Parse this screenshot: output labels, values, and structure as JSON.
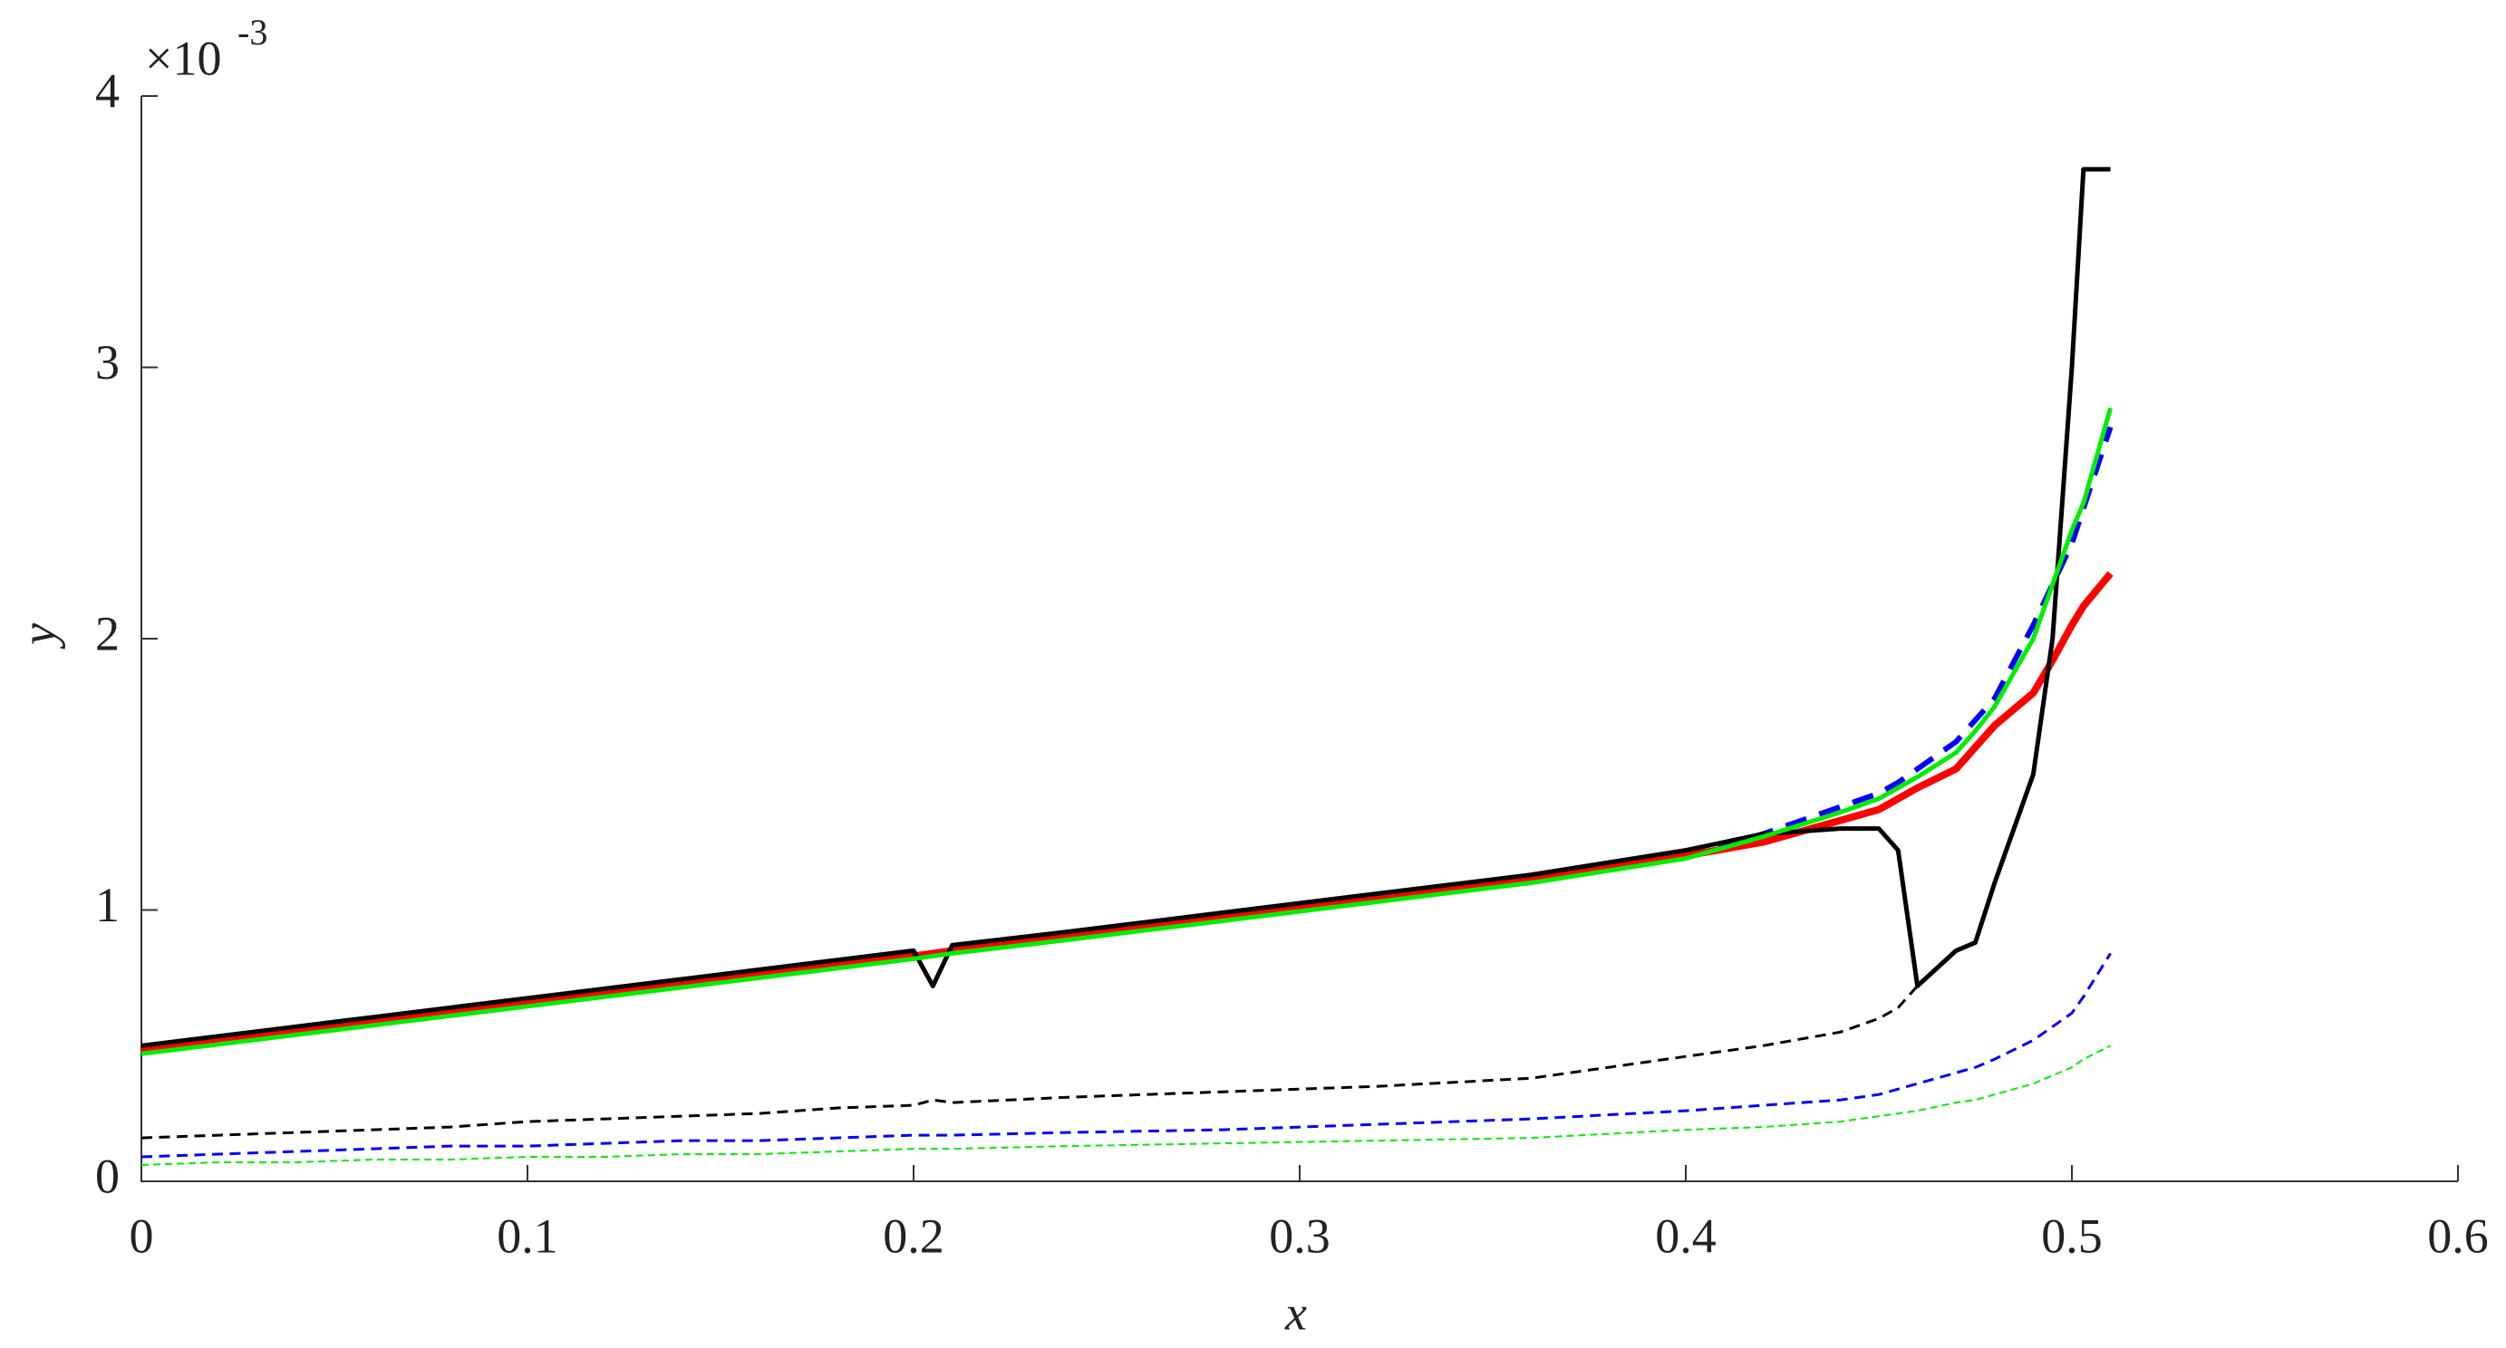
{
  "chart_data": {
    "type": "line",
    "xlabel": "x",
    "ylabel": "y",
    "y_multiplier": "×10",
    "y_exponent": "-3",
    "xlim": [
      0,
      0.6
    ],
    "xticks": [
      0,
      0.1,
      0.2,
      0.3,
      0.4,
      0.5,
      0.6
    ],
    "ylim": [
      0,
      4
    ],
    "yticks": [
      0,
      1,
      2,
      3,
      4
    ],
    "x": [
      0,
      0.02,
      0.04,
      0.06,
      0.08,
      0.1,
      0.12,
      0.14,
      0.16,
      0.18,
      0.2,
      0.205,
      0.21,
      0.24,
      0.28,
      0.32,
      0.36,
      0.4,
      0.42,
      0.44,
      0.45,
      0.455,
      0.46,
      0.47,
      0.475,
      0.48,
      0.49,
      0.495,
      0.5,
      0.503,
      0.51
    ],
    "series": [
      {
        "color": "#0000ff",
        "dash": "dashed",
        "width": 6,
        "values": [
          0.48,
          0.515,
          0.55,
          0.585,
          0.62,
          0.655,
          0.69,
          0.725,
          0.76,
          0.795,
          0.83,
          0.84,
          0.85,
          0.9,
          0.97,
          1.04,
          1.11,
          1.2,
          1.28,
          1.38,
          1.43,
          1.47,
          1.52,
          1.62,
          1.7,
          1.78,
          2.05,
          2.2,
          2.35,
          2.48,
          2.78
        ]
      },
      {
        "color": "#ff0000",
        "dash": "solid",
        "width": 8,
        "values": [
          0.48,
          0.515,
          0.55,
          0.585,
          0.62,
          0.655,
          0.69,
          0.725,
          0.76,
          0.795,
          0.83,
          0.84,
          0.85,
          0.9,
          0.97,
          1.04,
          1.11,
          1.2,
          1.25,
          1.33,
          1.37,
          1.41,
          1.45,
          1.52,
          1.6,
          1.68,
          1.8,
          1.92,
          2.05,
          2.12,
          2.24
        ]
      },
      {
        "color": "#000000",
        "dash": "solid",
        "width": 5,
        "values": [
          0.5,
          0.535,
          0.57,
          0.605,
          0.64,
          0.675,
          0.71,
          0.745,
          0.78,
          0.815,
          0.85,
          0.72,
          0.87,
          0.92,
          0.99,
          1.06,
          1.13,
          1.22,
          1.28,
          1.3,
          1.3,
          1.22,
          0.72,
          0.85,
          0.88,
          1.1,
          1.5,
          2.0,
          3.0,
          3.73,
          3.73
        ]
      },
      {
        "color": "#00ee00",
        "dash": "solid",
        "width": 5,
        "values": [
          0.47,
          0.505,
          0.54,
          0.575,
          0.61,
          0.645,
          0.68,
          0.715,
          0.75,
          0.785,
          0.82,
          0.83,
          0.84,
          0.89,
          0.96,
          1.03,
          1.1,
          1.19,
          1.27,
          1.36,
          1.41,
          1.45,
          1.49,
          1.58,
          1.66,
          1.75,
          2.0,
          2.2,
          2.4,
          2.5,
          2.85
        ]
      },
      {
        "color": "#000000",
        "dash": "dashed",
        "width": 3,
        "values": [
          0.16,
          0.17,
          0.18,
          0.19,
          0.2,
          0.22,
          0.23,
          0.24,
          0.25,
          0.27,
          0.28,
          0.3,
          0.29,
          0.31,
          0.33,
          0.35,
          0.38,
          0.46,
          0.5,
          0.55,
          0.6,
          0.64,
          0.72,
          null,
          null,
          null,
          null,
          null,
          null,
          null,
          null
        ]
      },
      {
        "color": "#0000ff",
        "dash": "dashed",
        "width": 3,
        "values": [
          0.09,
          0.1,
          0.11,
          0.12,
          0.13,
          0.13,
          0.14,
          0.15,
          0.15,
          0.16,
          0.17,
          0.17,
          0.17,
          0.18,
          0.19,
          0.21,
          0.23,
          0.26,
          0.28,
          0.3,
          0.32,
          0.34,
          0.36,
          0.4,
          0.42,
          0.45,
          0.52,
          0.57,
          0.62,
          0.68,
          0.84
        ]
      },
      {
        "color": "#00ee00",
        "dash": "dashed",
        "width": 2,
        "values": [
          0.06,
          0.07,
          0.07,
          0.08,
          0.08,
          0.09,
          0.09,
          0.1,
          0.1,
          0.11,
          0.12,
          0.12,
          0.12,
          0.13,
          0.14,
          0.15,
          0.16,
          0.19,
          0.2,
          0.22,
          0.24,
          0.25,
          0.26,
          0.29,
          0.3,
          0.32,
          0.36,
          0.39,
          0.42,
          0.45,
          0.5
        ]
      }
    ]
  }
}
